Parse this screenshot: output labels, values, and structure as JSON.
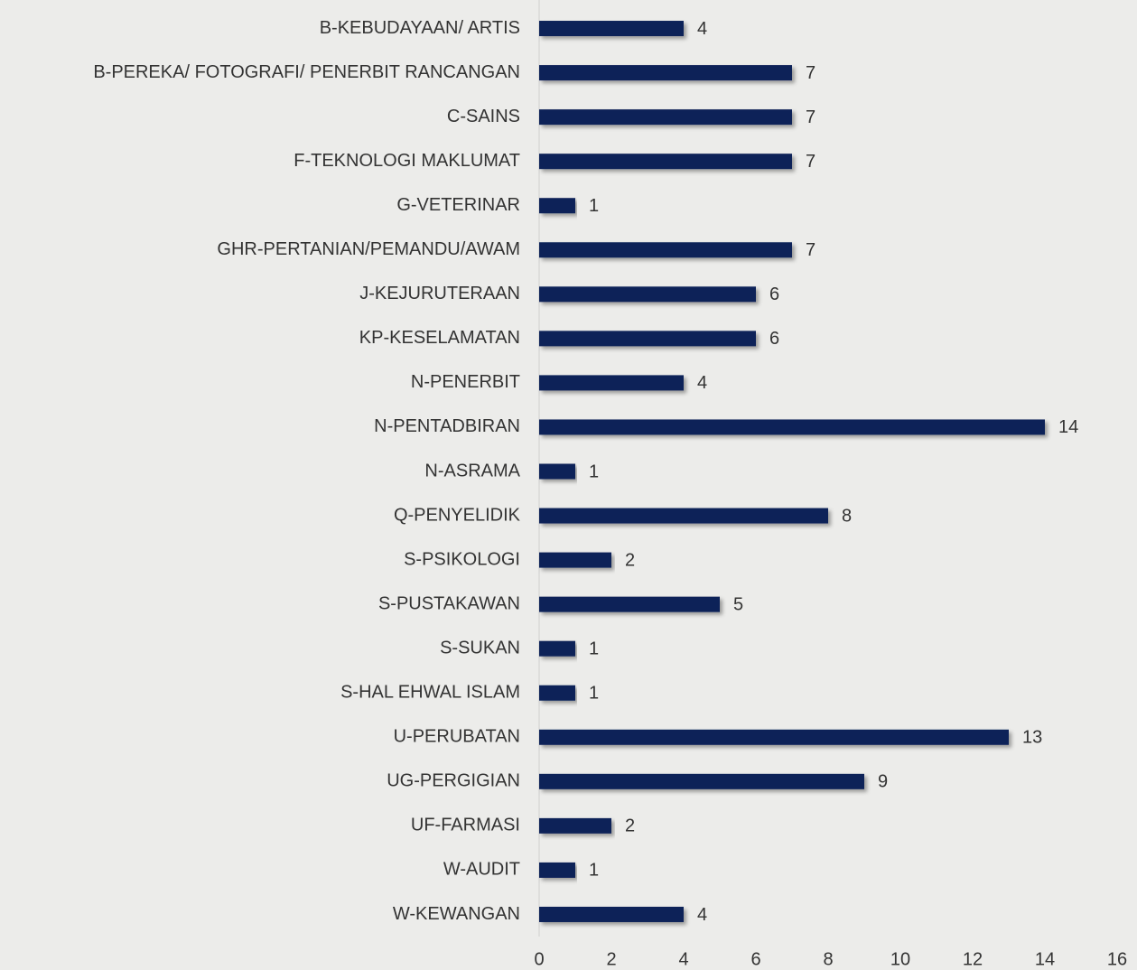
{
  "chart_data": {
    "type": "barh",
    "categories": [
      "B-KEBUDAYAAN/ ARTIS",
      "B-PEREKA/ FOTOGRAFI/ PENERBIT RANCANGAN",
      "C-SAINS",
      "F-TEKNOLOGI MAKLUMAT",
      "G-VETERINAR",
      "GHR-PERTANIAN/PEMANDU/AWAM",
      "J-KEJURUTERAAN",
      "KP-KESELAMATAN",
      "N-PENERBIT",
      "N-PENTADBIRAN",
      "N-ASRAMA",
      "Q-PENYELIDIK",
      "S-PSIKOLOGI",
      "S-PUSTAKAWAN",
      "S-SUKAN",
      "S-HAL EHWAL ISLAM",
      "U-PERUBATAN",
      "UG-PERGIGIAN",
      "UF-FARMASI",
      "W-AUDIT",
      "W-KEWANGAN"
    ],
    "values": [
      4,
      7,
      7,
      7,
      1,
      7,
      6,
      6,
      4,
      14,
      1,
      8,
      2,
      5,
      1,
      1,
      13,
      9,
      2,
      1,
      4
    ],
    "color": "#0d2158",
    "xlim": [
      0,
      16
    ],
    "xticks": [
      0,
      2,
      4,
      6,
      8,
      10,
      12,
      14,
      16
    ]
  }
}
